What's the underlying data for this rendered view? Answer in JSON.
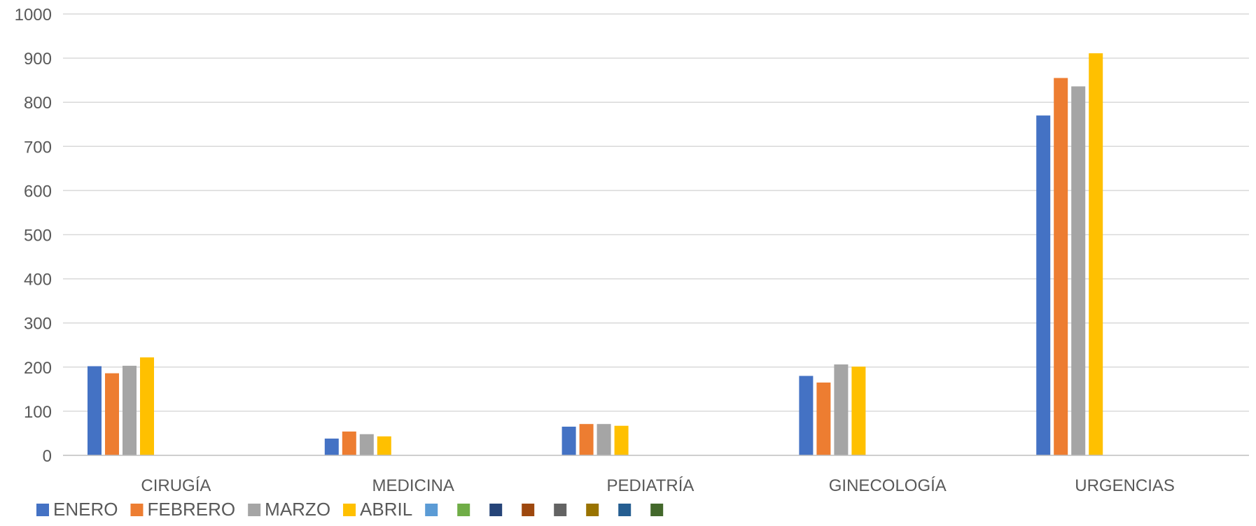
{
  "chart_data": {
    "type": "bar",
    "title": "",
    "xlabel": "",
    "ylabel": "",
    "categories": [
      "CIRUGÍA",
      "MEDICINA",
      "PEDIATRÍA",
      "GINECOLOGÍA",
      "URGENCIAS"
    ],
    "series": [
      {
        "name": "ENERO",
        "color": "#4472C4",
        "values": [
          202,
          38,
          65,
          180,
          770
        ]
      },
      {
        "name": "FEBRERO",
        "color": "#ED7D31",
        "values": [
          186,
          54,
          71,
          165,
          855
        ]
      },
      {
        "name": "MARZO",
        "color": "#A5A5A5",
        "values": [
          203,
          48,
          71,
          206,
          836
        ]
      },
      {
        "name": "ABRIL",
        "color": "#FFC000",
        "values": [
          222,
          43,
          67,
          201,
          911
        ]
      },
      {
        "name": "",
        "color": "#5B9BD5",
        "values": [
          null,
          null,
          null,
          null,
          null
        ]
      },
      {
        "name": "",
        "color": "#70AD47",
        "values": [
          null,
          null,
          null,
          null,
          null
        ]
      },
      {
        "name": "",
        "color": "#264478",
        "values": [
          null,
          null,
          null,
          null,
          null
        ]
      },
      {
        "name": "",
        "color": "#9E480E",
        "values": [
          null,
          null,
          null,
          null,
          null
        ]
      },
      {
        "name": "",
        "color": "#636363",
        "values": [
          null,
          null,
          null,
          null,
          null
        ]
      },
      {
        "name": "",
        "color": "#997300",
        "values": [
          null,
          null,
          null,
          null,
          null
        ]
      },
      {
        "name": "",
        "color": "#255E91",
        "values": [
          null,
          null,
          null,
          null,
          null
        ]
      },
      {
        "name": "",
        "color": "#43682B",
        "values": [
          null,
          null,
          null,
          null,
          null
        ]
      }
    ],
    "ylim": [
      0,
      1000
    ],
    "yticks": [
      0,
      100,
      200,
      300,
      400,
      500,
      600,
      700,
      800,
      900,
      1000
    ],
    "grid": true,
    "legend_position": "bottom",
    "colors": {
      "gridline": "#D9D9D9",
      "axis": "#BFBFBF",
      "text": "#595959"
    }
  }
}
